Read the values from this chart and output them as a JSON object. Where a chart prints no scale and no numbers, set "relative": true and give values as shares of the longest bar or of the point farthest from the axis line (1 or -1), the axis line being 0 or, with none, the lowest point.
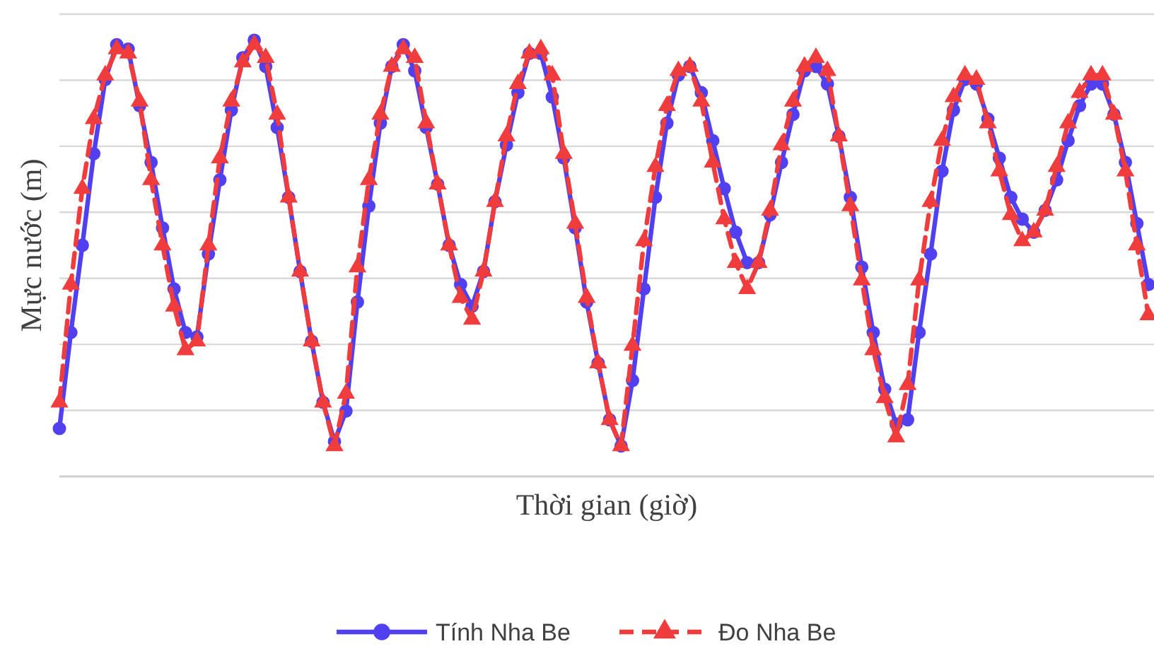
{
  "chart_data": {
    "type": "line",
    "xlabel": "Thời gian (giờ)",
    "ylabel": "Mực nước (m)",
    "relative": true,
    "grid": "y",
    "legend": "bottom",
    "categories": [
      null,
      null,
      null,
      null,
      null,
      null,
      null,
      null,
      null,
      null,
      null,
      null,
      null,
      null,
      null,
      null,
      null,
      null,
      null,
      null,
      null,
      null,
      null,
      null,
      null,
      null,
      null,
      null,
      null,
      null,
      null,
      null,
      null,
      null,
      null,
      null,
      null,
      null,
      null,
      null,
      null,
      null,
      null,
      null,
      null,
      null,
      null,
      null,
      null,
      null,
      null,
      null,
      null,
      null,
      null,
      null,
      null,
      null,
      null,
      null,
      null,
      null,
      null,
      null,
      null,
      null,
      null,
      null,
      null,
      null,
      null,
      null,
      null,
      null,
      null,
      null,
      null,
      null,
      null,
      null,
      null,
      null,
      null,
      null,
      null,
      null,
      null,
      null,
      null,
      null,
      null,
      null,
      null,
      null,
      null,
      null
    ],
    "series": [
      {
        "name": "Tính Nha Be",
        "color": "#5040f0",
        "marker": "circle",
        "line_style": "solid",
        "values": [
          0.11,
          0.33,
          0.53,
          0.74,
          0.91,
          0.99,
          0.98,
          0.85,
          0.72,
          0.57,
          0.43,
          0.33,
          0.32,
          0.51,
          0.68,
          0.84,
          0.96,
          1.0,
          0.94,
          0.8,
          0.64,
          0.47,
          0.31,
          0.17,
          0.08,
          0.15,
          0.4,
          0.62,
          0.81,
          0.94,
          0.99,
          0.93,
          0.8,
          0.67,
          0.53,
          0.44,
          0.39,
          0.47,
          0.63,
          0.76,
          0.88,
          0.97,
          0.97,
          0.87,
          0.73,
          0.57,
          0.4,
          0.26,
          0.13,
          0.07,
          0.22,
          0.43,
          0.64,
          0.81,
          0.92,
          0.94,
          0.88,
          0.77,
          0.66,
          0.56,
          0.49,
          0.49,
          0.6,
          0.72,
          0.83,
          0.93,
          0.94,
          0.9,
          0.78,
          0.64,
          0.48,
          0.33,
          0.2,
          0.12,
          0.13,
          0.33,
          0.51,
          0.7,
          0.84,
          0.91,
          0.9,
          0.82,
          0.73,
          0.64,
          0.59,
          0.56,
          0.61,
          0.68,
          0.77,
          0.85,
          0.9,
          0.9,
          0.83,
          0.72,
          0.58,
          0.44
        ]
      },
      {
        "name": "Đo Nha Be",
        "color": "#f03c3c",
        "marker": "triangle",
        "line_style": "dashed",
        "values": [
          0.17,
          0.44,
          0.66,
          0.82,
          0.92,
          0.98,
          0.97,
          0.86,
          0.68,
          0.53,
          0.39,
          0.29,
          0.31,
          0.53,
          0.73,
          0.86,
          0.95,
          0.99,
          0.96,
          0.83,
          0.64,
          0.47,
          0.31,
          0.17,
          0.07,
          0.19,
          0.48,
          0.68,
          0.83,
          0.94,
          0.98,
          0.96,
          0.81,
          0.67,
          0.53,
          0.41,
          0.36,
          0.47,
          0.63,
          0.78,
          0.9,
          0.97,
          0.98,
          0.92,
          0.74,
          0.58,
          0.41,
          0.26,
          0.13,
          0.07,
          0.3,
          0.54,
          0.71,
          0.85,
          0.93,
          0.94,
          0.86,
          0.72,
          0.59,
          0.49,
          0.43,
          0.49,
          0.61,
          0.76,
          0.86,
          0.94,
          0.96,
          0.93,
          0.78,
          0.62,
          0.45,
          0.29,
          0.18,
          0.09,
          0.21,
          0.45,
          0.63,
          0.77,
          0.87,
          0.92,
          0.91,
          0.81,
          0.7,
          0.6,
          0.54,
          0.56,
          0.61,
          0.71,
          0.81,
          0.88,
          0.92,
          0.92,
          0.83,
          0.7,
          0.53,
          0.37
        ]
      }
    ]
  }
}
